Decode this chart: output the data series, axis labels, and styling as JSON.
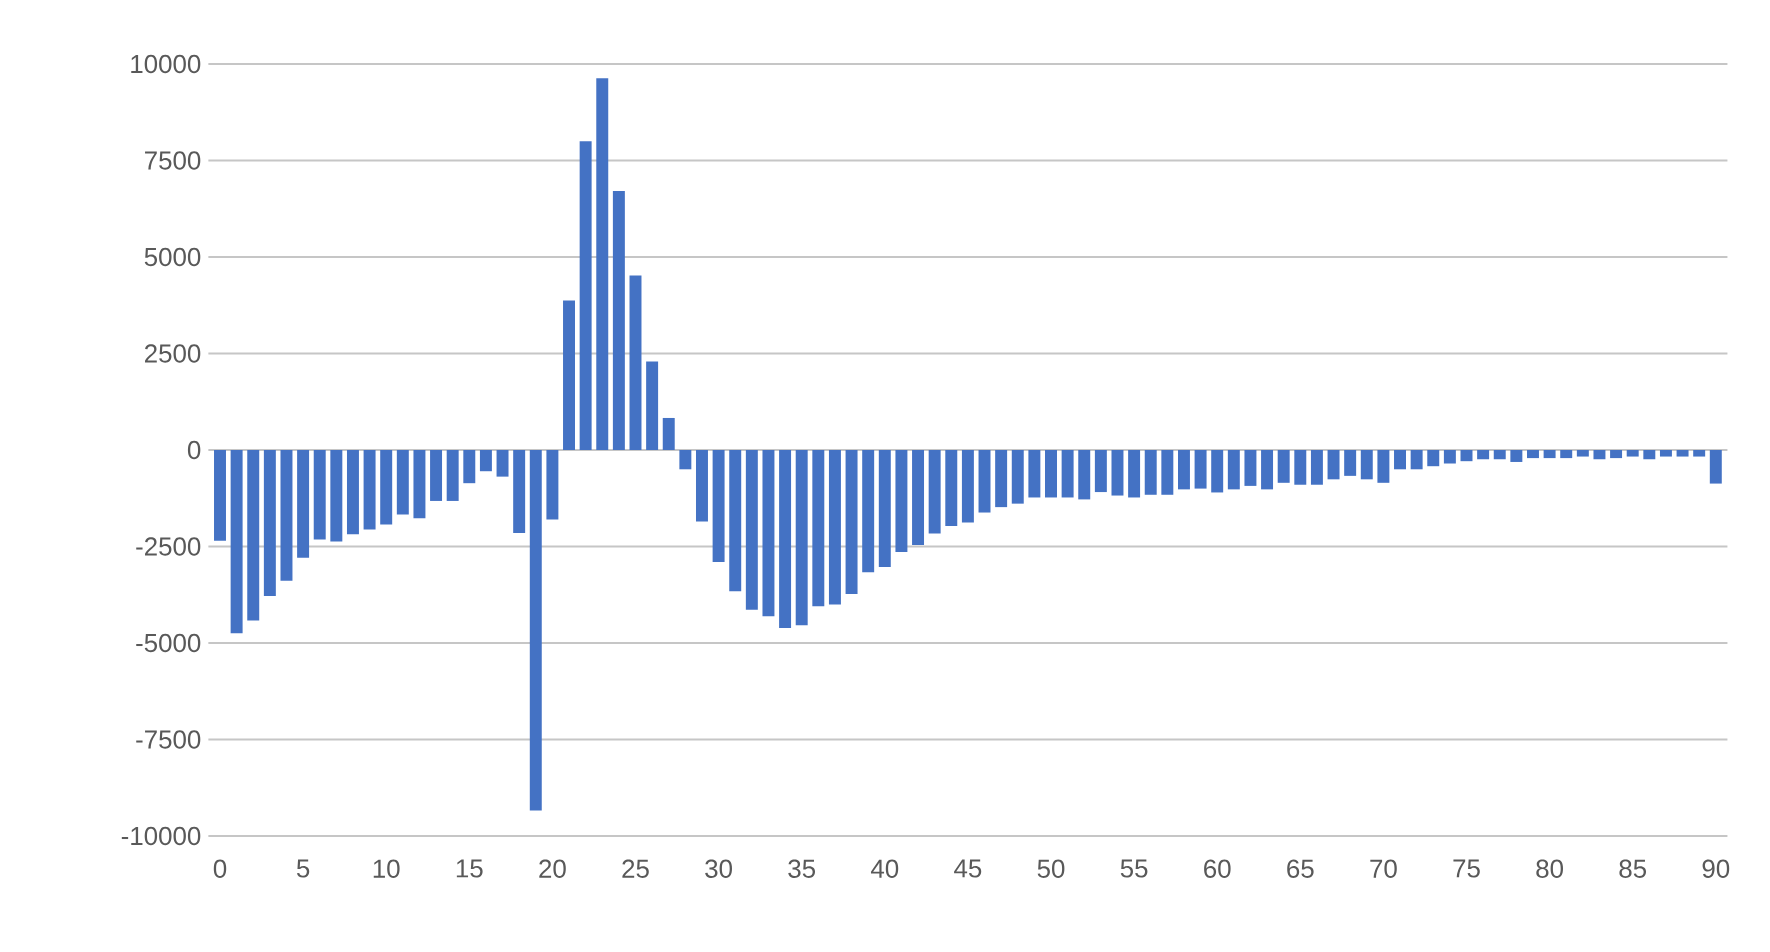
{
  "chart_data": {
    "type": "bar",
    "categories": [
      "0",
      null,
      null,
      null,
      null,
      "5",
      null,
      null,
      null,
      null,
      "10",
      null,
      null,
      null,
      null,
      "15",
      null,
      null,
      null,
      null,
      "20",
      null,
      null,
      null,
      null,
      "25",
      null,
      null,
      null,
      null,
      "30",
      null,
      null,
      null,
      null,
      "35",
      null,
      null,
      null,
      null,
      "40",
      null,
      null,
      null,
      null,
      "45",
      null,
      null,
      null,
      null,
      "50",
      null,
      null,
      null,
      null,
      "55",
      null,
      null,
      null,
      null,
      "60",
      null,
      null,
      null,
      null,
      "65",
      null,
      null,
      null,
      null,
      "70",
      null,
      null,
      null,
      null,
      "75",
      null,
      null,
      null,
      null,
      "80",
      null,
      null,
      null,
      null,
      "85",
      null,
      null,
      null,
      null,
      "90"
    ],
    "values": [
      -2350,
      -4750,
      -4420,
      -3780,
      -3390,
      -2790,
      -2320,
      -2370,
      -2180,
      -2060,
      -1930,
      -1670,
      -1770,
      -1320,
      -1320,
      -860,
      -550,
      -690,
      -2150,
      -9340,
      -1800,
      3870,
      8000,
      9630,
      6710,
      4520,
      2290,
      830,
      -500,
      -1850,
      -2900,
      -3660,
      -4140,
      -4310,
      -4610,
      -4540,
      -4050,
      -4000,
      -3730,
      -3170,
      -3030,
      -2640,
      -2460,
      -2160,
      -1970,
      -1880,
      -1620,
      -1480,
      -1390,
      -1230,
      -1230,
      -1230,
      -1280,
      -1090,
      -1180,
      -1230,
      -1160,
      -1160,
      -1020,
      -1000,
      -1100,
      -1020,
      -930,
      -1020,
      -850,
      -900,
      -900,
      -760,
      -670,
      -760,
      -850,
      -500,
      -500,
      -420,
      -350,
      -290,
      -240,
      -240,
      -310,
      -210,
      -210,
      -210,
      -170,
      -240,
      -210,
      -170,
      -240,
      -170,
      -170,
      -170,
      -870
    ],
    "color": "#4472c4",
    "ylim": [
      -10000,
      10000
    ],
    "yticks": [
      -10000,
      -7500,
      -5000,
      -2500,
      0,
      2500,
      5000,
      7500,
      10000
    ],
    "grid": "y"
  }
}
